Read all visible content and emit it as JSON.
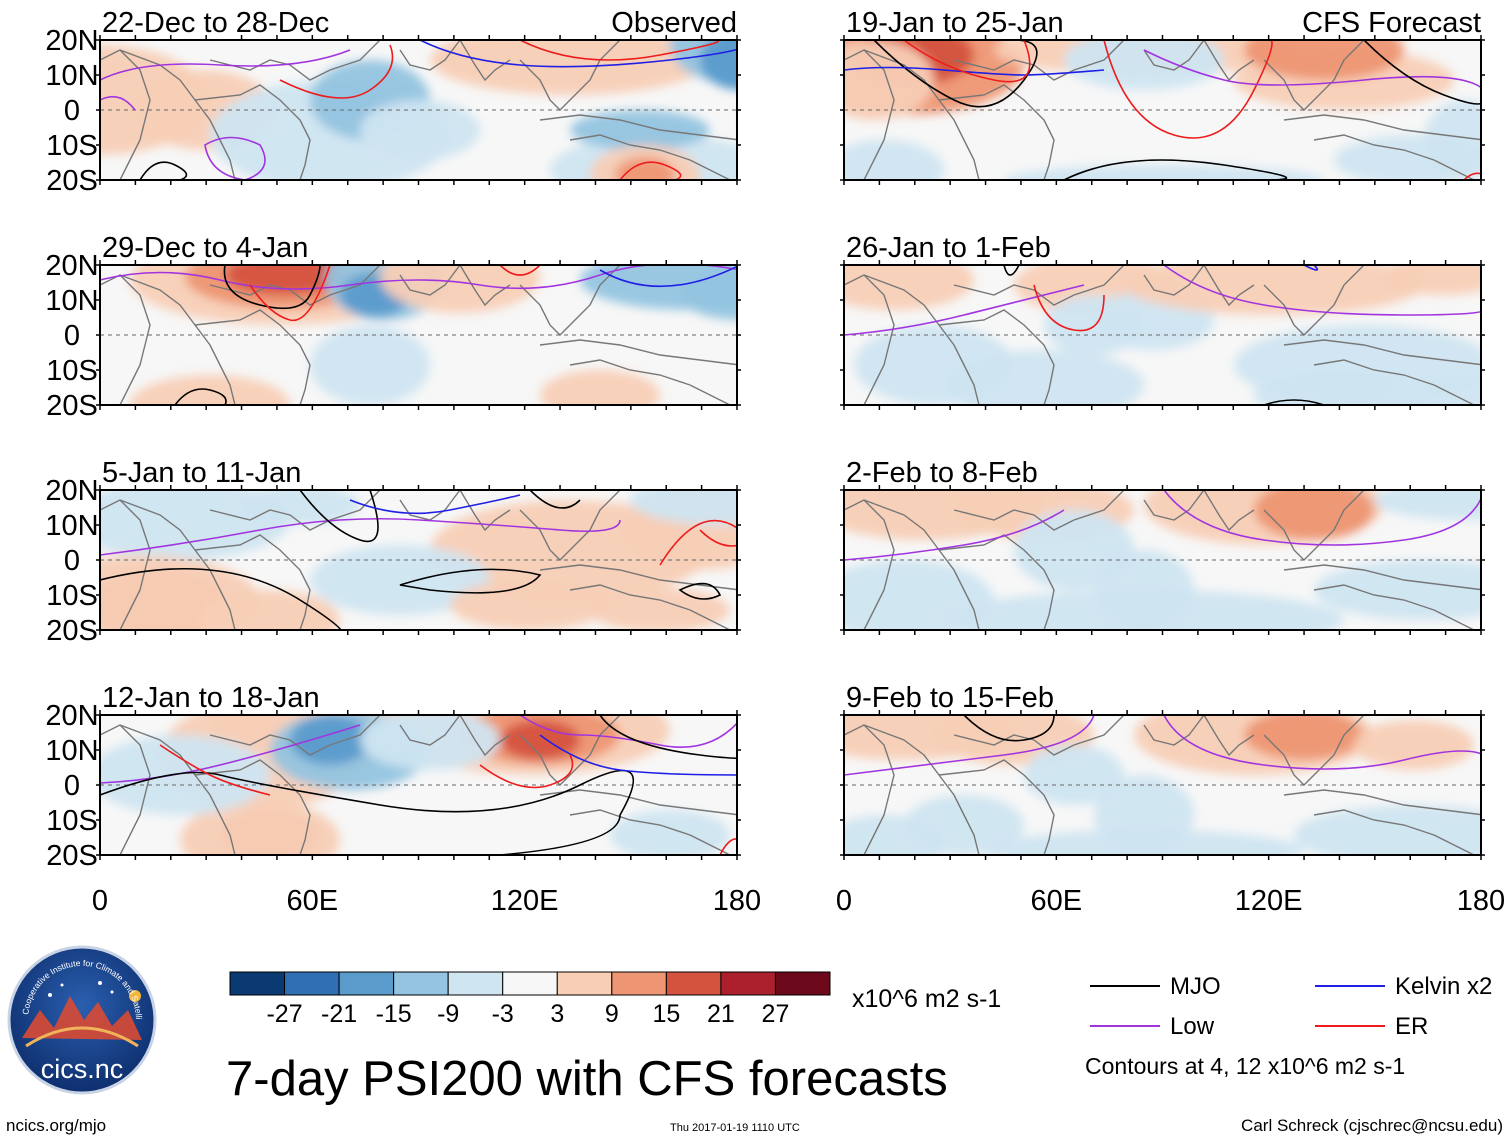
{
  "labels": {
    "observed": "Observed",
    "forecast": "CFS Forecast"
  },
  "axes": {
    "lat_ticks": [
      "20N",
      "10N",
      "0",
      "10S",
      "20S"
    ],
    "lon_ticks": [
      "0",
      "60E",
      "120E",
      "180"
    ]
  },
  "panels": [
    {
      "period": "22-Dec to 28-Dec",
      "kind": "observed"
    },
    {
      "period": "29-Dec to 4-Jan",
      "kind": "observed"
    },
    {
      "period": "5-Jan to 11-Jan",
      "kind": "observed"
    },
    {
      "period": "12-Jan to 18-Jan",
      "kind": "observed"
    },
    {
      "period": "19-Jan to 25-Jan",
      "kind": "forecast"
    },
    {
      "period": "26-Jan to 1-Feb",
      "kind": "forecast"
    },
    {
      "period": "2-Feb to 8-Feb",
      "kind": "forecast"
    },
    {
      "period": "9-Feb to 15-Feb",
      "kind": "forecast"
    }
  ],
  "colorbar": {
    "ticks": [
      "-27",
      "-21",
      "-15",
      "-9",
      "-3",
      "3",
      "9",
      "15",
      "21",
      "27"
    ],
    "units": "x10^6 m2 s-1",
    "colors": [
      "#0b3a73",
      "#2f6fb3",
      "#5a9bcc",
      "#94c4e0",
      "#cfe5f1",
      "#f7f7f7",
      "#f8cfb6",
      "#ee9673",
      "#d4533f",
      "#ac1f2d",
      "#6c0a1c"
    ]
  },
  "legend": {
    "items": [
      {
        "label": "MJO",
        "color": "#000000"
      },
      {
        "label": "Kelvin x2",
        "color": "#1f1fe6"
      },
      {
        "label": "Low",
        "color": "#a234e0"
      },
      {
        "label": "ER",
        "color": "#ee1c1c"
      }
    ],
    "note": "Contours at 4, 12 x10^6 m2 s-1"
  },
  "logo": {
    "text": "cics.nc",
    "ring_text": "Cooperative Institute for Climate and Satellites"
  },
  "main_title": "7-day PSI200 with CFS forecasts",
  "footer": {
    "url": "ncics.org/mjo",
    "timestamp": "Thu 2017-01-19 1110 UTC",
    "author": "Carl Schreck (cjschrec@ncsu.edu)"
  }
}
